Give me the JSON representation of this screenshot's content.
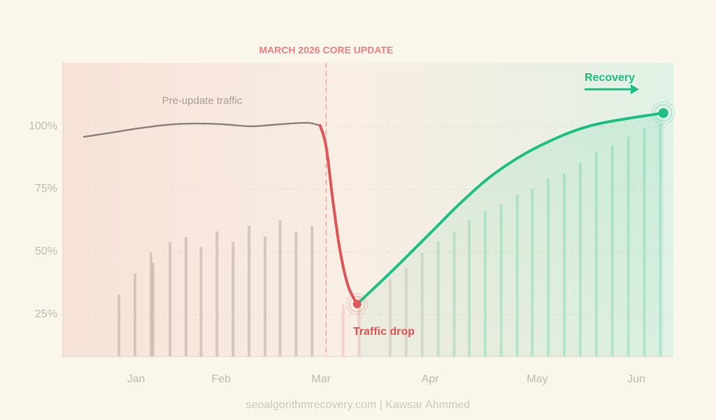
{
  "chart_data": {
    "type": "line",
    "annotation": {
      "text": "MARCH 2026 CORE UPDATE",
      "x": 2.9
    },
    "footer": "seoalgorithmrecovery.com | Kawsar Ahmmed",
    "xlim": [
      0.27,
      6.37
    ],
    "xticks": [
      {
        "value": 1,
        "label": "Jan"
      },
      {
        "value": 1.85,
        "label": "Feb"
      },
      {
        "value": 2.85,
        "label": "Mar"
      },
      {
        "value": 3.94,
        "label": "Apr"
      },
      {
        "value": 5.01,
        "label": "May"
      },
      {
        "value": 6,
        "label": "Jun"
      }
    ],
    "ylim": [
      8.3,
      125.3
    ],
    "yticks": [
      {
        "value": 25,
        "label": "25%"
      },
      {
        "value": 50,
        "label": "50%"
      },
      {
        "value": 75,
        "label": "75%"
      },
      {
        "value": 100,
        "label": "100%"
      }
    ],
    "grid": true,
    "series": [
      {
        "name": "Pre-update traffic",
        "color": "#8a8580",
        "x": [
          0.48,
          0.76,
          1.03,
          1.31,
          1.56,
          1.87,
          2.15,
          2.43,
          2.71,
          2.84
        ],
        "values": [
          95.8,
          97.5,
          99.2,
          100.6,
          101.1,
          100.8,
          100,
          100.8,
          101.4,
          100.3
        ]
      },
      {
        "name": "Traffic drop",
        "color": "#e05555",
        "x": [
          2.84,
          2.9,
          2.97,
          3.04,
          3.12,
          3.21
        ],
        "values": [
          100.3,
          91.9,
          69.7,
          50.3,
          36.4,
          29.2
        ]
      },
      {
        "name": "Recovery",
        "color": "#1dbf85",
        "x": [
          3.21,
          3.55,
          3.97,
          4.25,
          4.59,
          5.02,
          5.55,
          6.27
        ],
        "values": [
          29.2,
          42,
          58.6,
          69.7,
          81.4,
          91.9,
          100.3,
          105.3
        ]
      }
    ],
    "bars": {
      "x": [
        0.83,
        0.99,
        1.15,
        1.17,
        1.34,
        1.5,
        1.65,
        1.81,
        1.97,
        2.13,
        2.29,
        2.44,
        2.6,
        2.76,
        3.07,
        3.23,
        3.54,
        3.7,
        3.86,
        4.02,
        4.18,
        4.33,
        4.49,
        4.65,
        4.81,
        4.96,
        5.12,
        5.28,
        5.44,
        5.6,
        5.76,
        5.92,
        6.08,
        6.24
      ],
      "values": [
        33,
        41.4,
        49.7,
        45.6,
        53.9,
        55.8,
        51.9,
        58.1,
        53.9,
        60.3,
        56.1,
        62.5,
        58.1,
        60.3,
        28.9,
        32.2,
        39.2,
        43.6,
        49.7,
        54.2,
        58.1,
        62.5,
        66.4,
        68.9,
        72.8,
        75,
        79.2,
        81.4,
        85.3,
        89.7,
        92.5,
        95.8,
        99.4,
        101.1
      ]
    }
  }
}
